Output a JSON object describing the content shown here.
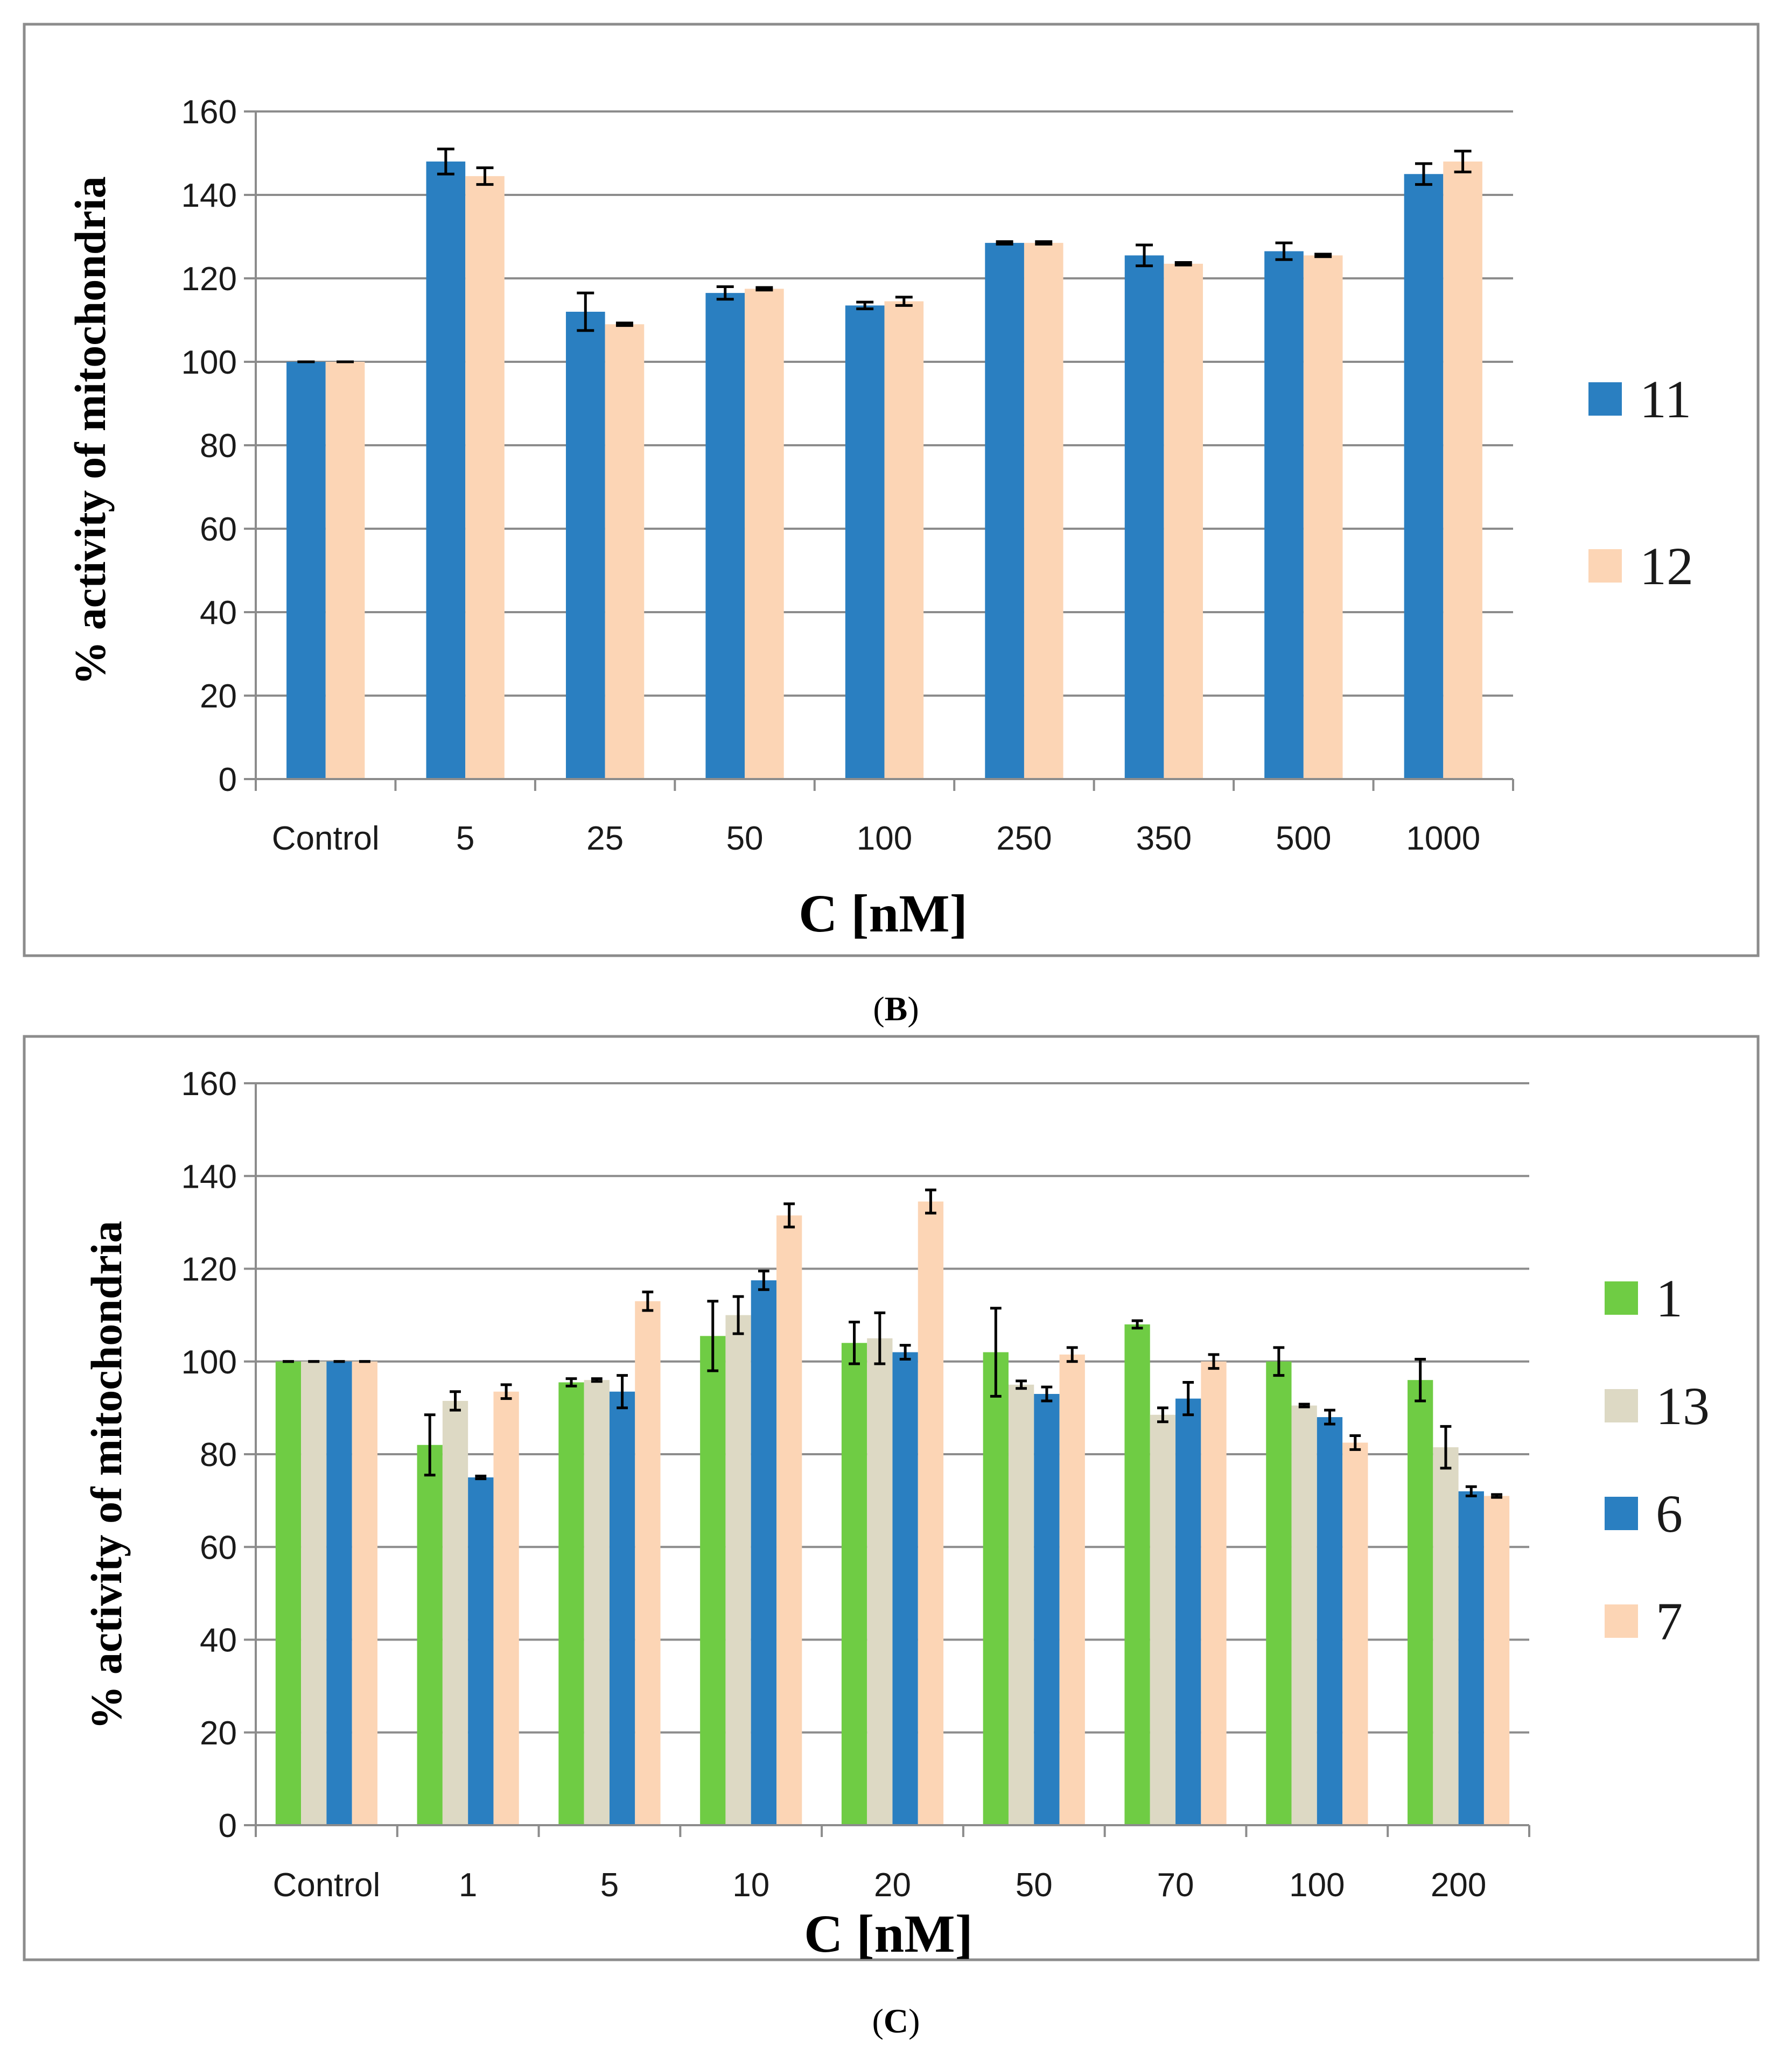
{
  "panels": [
    {
      "label": "(B)",
      "label_letter": "B",
      "chart_data": {
        "type": "bar",
        "title": "",
        "xlabel": "C [nM]",
        "ylabel": "% activity of mitochondria",
        "ylim": [
          0,
          160
        ],
        "yticks": [
          0,
          20,
          40,
          60,
          80,
          100,
          120,
          140,
          160
        ],
        "grid": true,
        "legend_position": "right",
        "categories": [
          "Control",
          "5",
          "25",
          "50",
          "100",
          "250",
          "350",
          "500",
          "1000"
        ],
        "series": [
          {
            "name": "11",
            "color": "#2a7fc1",
            "values": [
              100,
              148,
              112,
              116.5,
              113.5,
              128.5,
              125.5,
              126.5,
              145
            ],
            "errors": [
              0,
              3,
              4.5,
              1.5,
              0.8,
              0.3,
              2.5,
              2,
              2.5
            ]
          },
          {
            "name": "12",
            "color": "#fcd5b5",
            "values": [
              100,
              144.5,
              109,
              117.5,
              114.5,
              128.5,
              123.5,
              125.5,
              148
            ],
            "errors": [
              0,
              2,
              0.3,
              0.3,
              1,
              0.3,
              0.3,
              0.3,
              2.5
            ]
          }
        ]
      }
    },
    {
      "label": "(C)",
      "label_letter": "C",
      "chart_data": {
        "type": "bar",
        "title": "",
        "xlabel": "C [nM]",
        "ylabel": "% activity of mitochondria",
        "ylim": [
          0,
          160
        ],
        "yticks": [
          0,
          20,
          40,
          60,
          80,
          100,
          120,
          140,
          160
        ],
        "grid": true,
        "legend_position": "right",
        "categories": [
          "Control",
          "1",
          "5",
          "10",
          "20",
          "50",
          "70",
          "100",
          "200"
        ],
        "series": [
          {
            "name": "1",
            "color": "#6fcc44",
            "values": [
              100,
              82,
              95.5,
              105.5,
              104,
              102,
              108,
              100,
              96
            ],
            "errors": [
              0,
              6.5,
              0.8,
              7.5,
              4.5,
              9.5,
              0.8,
              3,
              4.5
            ]
          },
          {
            "name": "13",
            "color": "#ddd9c4",
            "values": [
              100,
              91.5,
              96,
              110,
              105,
              95,
              88.5,
              90.5,
              81.5
            ],
            "errors": [
              0,
              2,
              0.3,
              4,
              5.5,
              0.8,
              1.5,
              0.3,
              4.5
            ]
          },
          {
            "name": "6",
            "color": "#2a7fc1",
            "values": [
              100,
              75,
              93.5,
              117.5,
              102,
              93,
              92,
              88,
              72
            ],
            "errors": [
              0,
              0.3,
              3.5,
              2,
              1.5,
              1.5,
              3.5,
              1.5,
              1
            ]
          },
          {
            "name": "7",
            "color": "#fcd5b5",
            "values": [
              100,
              93.5,
              113,
              131.5,
              134.5,
              101.5,
              100,
              82.5,
              71
            ],
            "errors": [
              0,
              1.5,
              2,
              2.5,
              2.5,
              1.5,
              1.5,
              1.5,
              0.3
            ]
          }
        ]
      }
    }
  ]
}
